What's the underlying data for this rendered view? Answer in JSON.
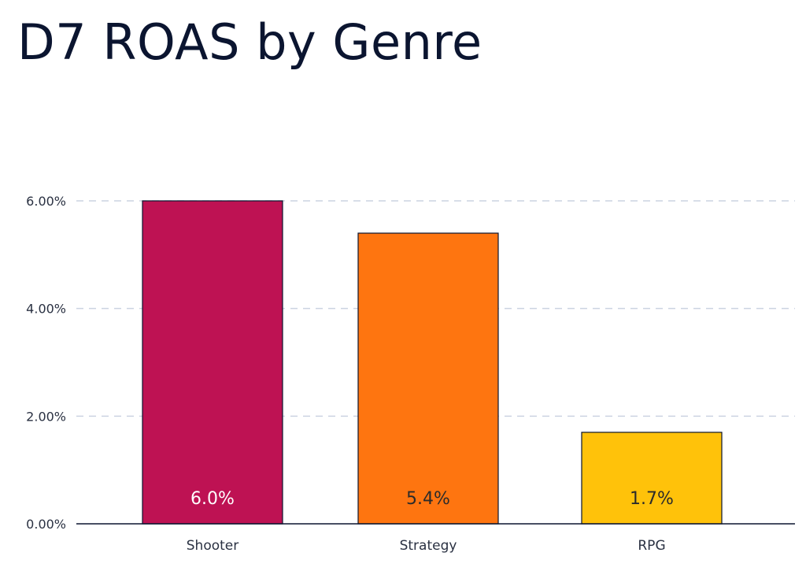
{
  "chart_data": {
    "type": "bar",
    "title": "D7 ROAS by Genre",
    "xlabel": "",
    "ylabel": "",
    "categories": [
      "Shooter",
      "Strategy",
      "RPG"
    ],
    "values": [
      6.0,
      5.4,
      1.7
    ],
    "data_labels": [
      "6.0%",
      "5.4%",
      "1.7%"
    ],
    "ylim": [
      0,
      6
    ],
    "yticks": [
      {
        "value": 0,
        "label": "0.00%"
      },
      {
        "value": 2,
        "label": "2.00%"
      },
      {
        "value": 4,
        "label": "4.00%"
      },
      {
        "value": 6,
        "label": "6.00%"
      }
    ],
    "grid": true,
    "grid_style": "dashed",
    "legend": "none",
    "colors": [
      "#be1253",
      "#fe7510",
      "#ffc20a"
    ],
    "label_colors": [
      "#ffffff",
      "#2b2b2b",
      "#2b2b2b"
    ],
    "bar_edge_color": "#0b1530",
    "axis_color": "#0b1530",
    "grid_color": "#cbd3e1"
  }
}
